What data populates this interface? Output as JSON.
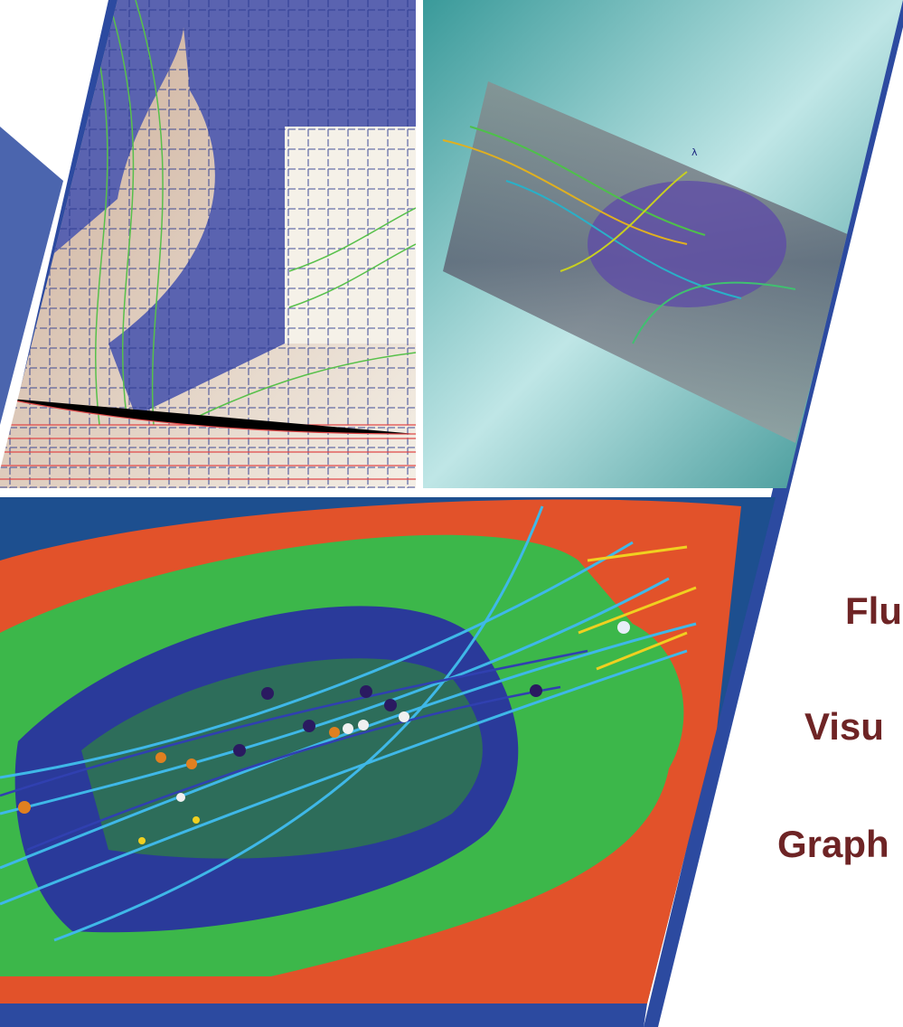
{
  "panel_label": "λ",
  "headings": [
    "Flu",
    "Visu",
    "Graph"
  ]
}
